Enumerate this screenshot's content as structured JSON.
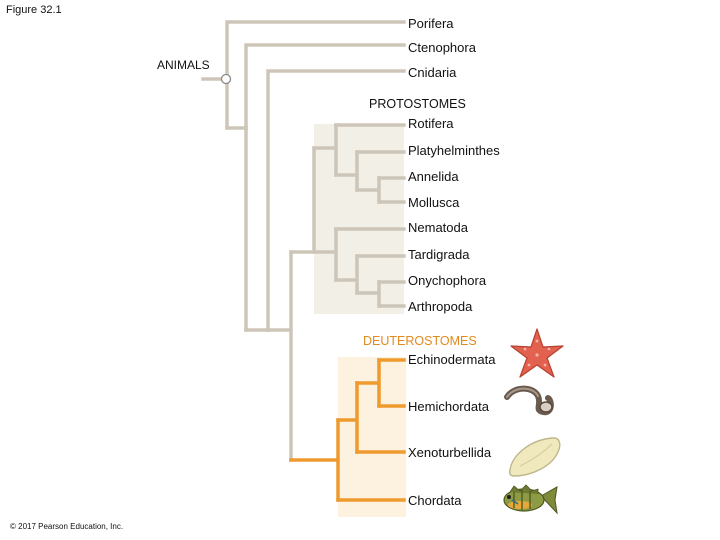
{
  "figure_label": "Figure 32.1",
  "copyright": "© 2017 Pearson Education, Inc.",
  "clades": {
    "animals": "ANIMALS",
    "protostomes": "PROTOSTOMES",
    "deuterostomes": "DEUTEROSTOMES"
  },
  "taxa": [
    {
      "name": "Porifera",
      "group": "basal"
    },
    {
      "name": "Ctenophora",
      "group": "basal"
    },
    {
      "name": "Cnidaria",
      "group": "basal"
    },
    {
      "name": "Rotifera",
      "group": "protostome"
    },
    {
      "name": "Platyhelminthes",
      "group": "protostome"
    },
    {
      "name": "Annelida",
      "group": "protostome"
    },
    {
      "name": "Mollusca",
      "group": "protostome"
    },
    {
      "name": "Nematoda",
      "group": "protostome"
    },
    {
      "name": "Tardigrada",
      "group": "protostome"
    },
    {
      "name": "Onychophora",
      "group": "protostome"
    },
    {
      "name": "Arthropoda",
      "group": "protostome"
    },
    {
      "name": "Echinodermata",
      "group": "deuterostome",
      "icon": "starfish-icon"
    },
    {
      "name": "Hemichordata",
      "group": "deuterostome",
      "icon": "acorn-worm-icon"
    },
    {
      "name": "Xenoturbellida",
      "group": "deuterostome",
      "icon": "xenoturbella-icon"
    },
    {
      "name": "Chordata",
      "group": "deuterostome",
      "icon": "fish-icon"
    }
  ],
  "colors": {
    "basal_branch": "#cdc6b8",
    "protostome_branch": "#cdc6b8",
    "protostome_fill": "#f1efe6",
    "deuterostome_branch": "#ee9a2f",
    "deuterostome_fill": "#fdf1df",
    "deuterostome_label": "#e28a1e"
  }
}
